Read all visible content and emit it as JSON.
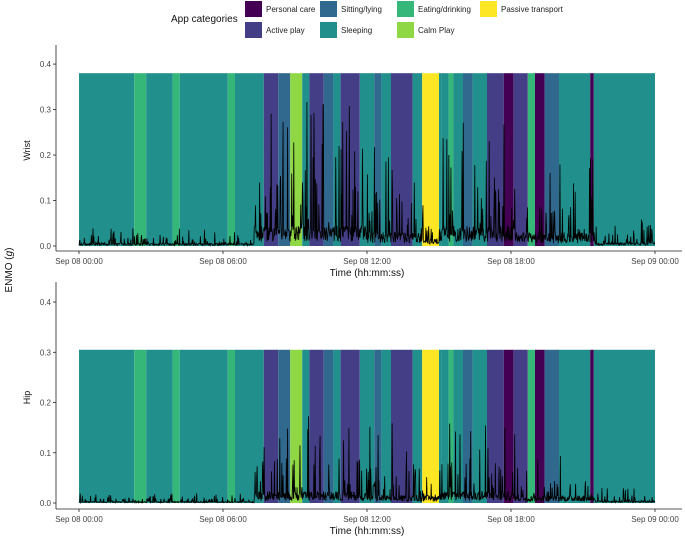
{
  "chart_data": {
    "type": "line",
    "shared_ylabel": "ENMO (g)",
    "ylabel_main": "ENMO (",
    "ylabel_unit": "g",
    "ylabel_close": ")",
    "xlabel": "Time (hh:mm:ss)",
    "x_range_hours": [
      0,
      24
    ],
    "x_ticks": [
      {
        "hour": 0,
        "label": "Sep 08 00:00"
      },
      {
        "hour": 6,
        "label": "Sep 08 06:00"
      },
      {
        "hour": 12,
        "label": "Sep 08 12:00"
      },
      {
        "hour": 18,
        "label": "Sep 08 18:00"
      },
      {
        "hour": 24,
        "label": "Sep 09 00:00"
      }
    ],
    "legend": {
      "title": "App categories",
      "placement": "top",
      "entries": [
        {
          "name": "Personal care",
          "color": "#440154"
        },
        {
          "name": "Active play",
          "color": "#433e85"
        },
        {
          "name": "Sitting/lying",
          "color": "#31688e"
        },
        {
          "name": "Sleeping",
          "color": "#218f8c"
        },
        {
          "name": "Eating/drinking",
          "color": "#35b779"
        },
        {
          "name": "Calm Play",
          "color": "#8fd744"
        },
        {
          "name": "Passive transport",
          "color": "#fde725"
        }
      ]
    },
    "category_segments": [
      {
        "start": 0.0,
        "end": 2.3,
        "category": "Sleeping"
      },
      {
        "start": 2.3,
        "end": 2.8,
        "category": "Eating/drinking"
      },
      {
        "start": 2.8,
        "end": 3.9,
        "category": "Sleeping"
      },
      {
        "start": 3.9,
        "end": 4.2,
        "category": "Eating/drinking"
      },
      {
        "start": 4.2,
        "end": 6.2,
        "category": "Sleeping"
      },
      {
        "start": 6.2,
        "end": 6.5,
        "category": "Eating/drinking"
      },
      {
        "start": 6.5,
        "end": 7.7,
        "category": "Sleeping"
      },
      {
        "start": 7.7,
        "end": 8.3,
        "category": "Active play"
      },
      {
        "start": 8.3,
        "end": 8.8,
        "category": "Sitting/lying"
      },
      {
        "start": 8.8,
        "end": 9.3,
        "category": "Calm Play"
      },
      {
        "start": 9.3,
        "end": 9.6,
        "category": "Sleeping"
      },
      {
        "start": 9.6,
        "end": 10.2,
        "category": "Active play"
      },
      {
        "start": 10.2,
        "end": 10.6,
        "category": "Sitting/lying"
      },
      {
        "start": 10.6,
        "end": 10.9,
        "category": "Sleeping"
      },
      {
        "start": 10.9,
        "end": 11.7,
        "category": "Active play"
      },
      {
        "start": 11.7,
        "end": 12.3,
        "category": "Sleeping"
      },
      {
        "start": 12.3,
        "end": 12.6,
        "category": "Sitting/lying"
      },
      {
        "start": 12.6,
        "end": 13.0,
        "category": "Sleeping"
      },
      {
        "start": 13.0,
        "end": 13.9,
        "category": "Active play"
      },
      {
        "start": 13.9,
        "end": 14.3,
        "category": "Sleeping"
      },
      {
        "start": 14.3,
        "end": 15.0,
        "category": "Passive transport"
      },
      {
        "start": 15.0,
        "end": 15.1,
        "category": "Sleeping"
      },
      {
        "start": 15.1,
        "end": 15.4,
        "category": "Sleeping"
      },
      {
        "start": 15.4,
        "end": 15.6,
        "category": "Eating/drinking"
      },
      {
        "start": 15.6,
        "end": 16.0,
        "category": "Sleeping"
      },
      {
        "start": 16.0,
        "end": 16.4,
        "category": "Sitting/lying"
      },
      {
        "start": 16.4,
        "end": 17.0,
        "category": "Sleeping"
      },
      {
        "start": 17.0,
        "end": 17.7,
        "category": "Active play"
      },
      {
        "start": 17.7,
        "end": 18.1,
        "category": "Personal care"
      },
      {
        "start": 18.1,
        "end": 18.7,
        "category": "Active play"
      },
      {
        "start": 18.7,
        "end": 19.0,
        "category": "Eating/drinking"
      },
      {
        "start": 19.0,
        "end": 19.4,
        "category": "Personal care"
      },
      {
        "start": 19.4,
        "end": 20.0,
        "category": "Sitting/lying"
      },
      {
        "start": 20.0,
        "end": 21.3,
        "category": "Sleeping"
      },
      {
        "start": 21.3,
        "end": 21.45,
        "category": "Personal care"
      },
      {
        "start": 21.45,
        "end": 24.0,
        "category": "Sleeping"
      }
    ],
    "panels": [
      {
        "name": "Wrist",
        "ylim": [
          0,
          0.42
        ],
        "y_ticks": [
          "0.0",
          "0.1",
          "0.2",
          "0.3",
          "0.4"
        ],
        "band_top": 0.38,
        "activity_profile": [
          {
            "start": 0.0,
            "end": 7.3,
            "baseline": 0.004,
            "peak": 0.04
          },
          {
            "start": 7.3,
            "end": 12.0,
            "baseline": 0.03,
            "peak": 0.32
          },
          {
            "start": 12.0,
            "end": 14.2,
            "baseline": 0.02,
            "peak": 0.26
          },
          {
            "start": 14.2,
            "end": 15.0,
            "baseline": 0.01,
            "peak": 0.1
          },
          {
            "start": 15.0,
            "end": 18.2,
            "baseline": 0.03,
            "peak": 0.28
          },
          {
            "start": 18.2,
            "end": 21.5,
            "baseline": 0.02,
            "peak": 0.2
          },
          {
            "start": 21.5,
            "end": 24.0,
            "baseline": 0.005,
            "peak": 0.06
          }
        ]
      },
      {
        "name": "Hip",
        "ylim": [
          0,
          0.42
        ],
        "y_ticks": [
          "0.0",
          "0.1",
          "0.2",
          "0.3",
          "0.4"
        ],
        "band_top": 0.305,
        "activity_profile": [
          {
            "start": 0.0,
            "end": 7.3,
            "baseline": 0.002,
            "peak": 0.02
          },
          {
            "start": 7.3,
            "end": 12.0,
            "baseline": 0.015,
            "peak": 0.2
          },
          {
            "start": 12.0,
            "end": 14.2,
            "baseline": 0.01,
            "peak": 0.16
          },
          {
            "start": 14.2,
            "end": 15.0,
            "baseline": 0.01,
            "peak": 0.06
          },
          {
            "start": 15.0,
            "end": 18.2,
            "baseline": 0.015,
            "peak": 0.18
          },
          {
            "start": 18.2,
            "end": 21.5,
            "baseline": 0.01,
            "peak": 0.1
          },
          {
            "start": 21.5,
            "end": 24.0,
            "baseline": 0.003,
            "peak": 0.03
          }
        ]
      }
    ]
  }
}
